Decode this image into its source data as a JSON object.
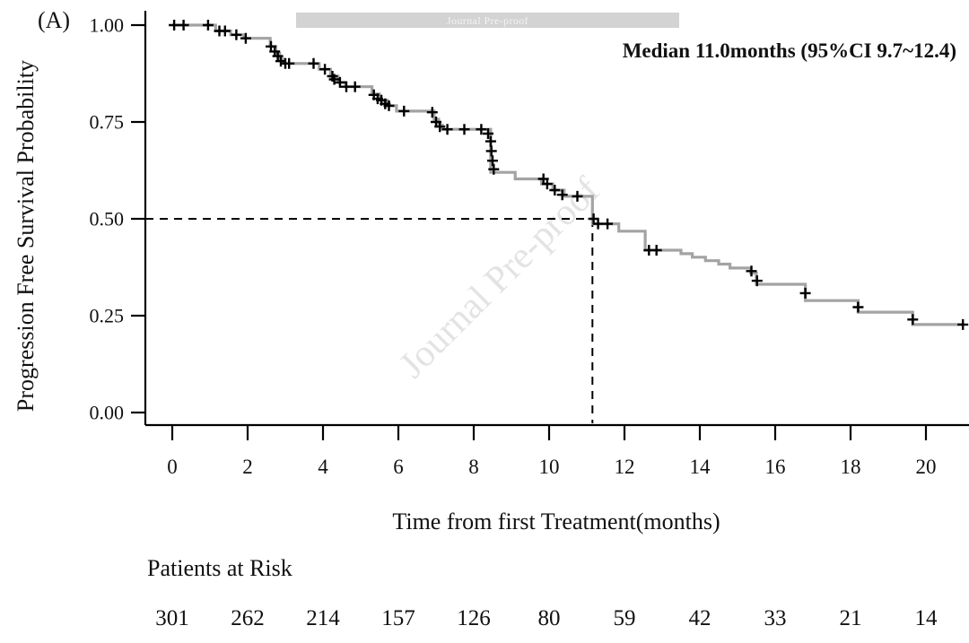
{
  "panel_label": "(A)",
  "watermark": {
    "banner_text": "Journal Pre-proof",
    "diagonal_text": "Journal Pre-proof"
  },
  "annotation": {
    "text": "Median 11.0months (95%CI 9.7~12.4)"
  },
  "axes": {
    "y_label": "Progression Free Survival Probability",
    "x_label": "Time from first Treatment(months)",
    "y_ticks": [
      "1.00",
      "0.75",
      "0.50",
      "0.25",
      "0.00"
    ],
    "x_ticks": [
      "0",
      "2",
      "4",
      "6",
      "8",
      "10",
      "12",
      "14",
      "16",
      "18",
      "20"
    ]
  },
  "risk_table": {
    "title": "Patients at Risk",
    "values": [
      "301",
      "262",
      "214",
      "157",
      "126",
      "80",
      "59",
      "42",
      "33",
      "21",
      "14"
    ]
  },
  "chart_data": {
    "type": "line",
    "subtype": "kaplan-meier-step",
    "title": "",
    "xlabel": "Time from first Treatment(months)",
    "ylabel": "Progression Free Survival Probability",
    "xlim": [
      0,
      21.2
    ],
    "ylim": [
      0,
      1.0
    ],
    "x_tick_values": [
      0,
      2,
      4,
      6,
      8,
      10,
      12,
      14,
      16,
      18,
      20
    ],
    "y_tick_values": [
      1.0,
      0.75,
      0.5,
      0.25,
      0.0
    ],
    "grid": false,
    "legend": "none",
    "curve_color": "#a3a3a3",
    "censor_color": "#000000",
    "median": {
      "time": 11.0,
      "survival": 0.5,
      "ci_low": 9.7,
      "ci_high": 12.4,
      "drawn_at_time": 11.15
    },
    "start": [
      0,
      1.0
    ],
    "end_time": 21.0,
    "steps": [
      [
        1.15,
        0.985
      ],
      [
        1.55,
        0.975
      ],
      [
        1.9,
        0.966
      ],
      [
        2.6,
        0.945
      ],
      [
        2.75,
        0.927
      ],
      [
        2.85,
        0.912
      ],
      [
        2.95,
        0.901
      ],
      [
        3.9,
        0.886
      ],
      [
        4.2,
        0.868
      ],
      [
        4.4,
        0.852
      ],
      [
        4.6,
        0.841
      ],
      [
        5.3,
        0.822
      ],
      [
        5.5,
        0.806
      ],
      [
        5.7,
        0.792
      ],
      [
        5.95,
        0.778
      ],
      [
        6.95,
        0.757
      ],
      [
        7.07,
        0.742
      ],
      [
        7.17,
        0.731
      ],
      [
        8.45,
        0.62
      ],
      [
        9.1,
        0.603
      ],
      [
        9.8,
        0.59
      ],
      [
        10.1,
        0.574
      ],
      [
        10.4,
        0.558
      ],
      [
        11.15,
        0.487
      ],
      [
        11.85,
        0.468
      ],
      [
        12.55,
        0.419
      ],
      [
        13.5,
        0.41
      ],
      [
        13.8,
        0.401
      ],
      [
        14.15,
        0.392
      ],
      [
        14.5,
        0.383
      ],
      [
        14.8,
        0.373
      ],
      [
        15.35,
        0.36
      ],
      [
        15.5,
        0.331
      ],
      [
        16.8,
        0.289
      ],
      [
        18.2,
        0.259
      ],
      [
        19.65,
        0.227
      ]
    ],
    "censors": [
      [
        0.05,
        1.0
      ],
      [
        0.3,
        1.0
      ],
      [
        0.95,
        1.0
      ],
      [
        1.25,
        0.985
      ],
      [
        1.4,
        0.985
      ],
      [
        1.7,
        0.975
      ],
      [
        1.95,
        0.966
      ],
      [
        2.62,
        0.945
      ],
      [
        2.72,
        0.932
      ],
      [
        2.8,
        0.92
      ],
      [
        2.88,
        0.907
      ],
      [
        3.0,
        0.901
      ],
      [
        3.1,
        0.901
      ],
      [
        3.75,
        0.901
      ],
      [
        4.05,
        0.886
      ],
      [
        4.25,
        0.868
      ],
      [
        4.3,
        0.86
      ],
      [
        4.45,
        0.852
      ],
      [
        4.62,
        0.841
      ],
      [
        4.85,
        0.841
      ],
      [
        5.35,
        0.82
      ],
      [
        5.45,
        0.81
      ],
      [
        5.55,
        0.806
      ],
      [
        5.65,
        0.797
      ],
      [
        5.75,
        0.792
      ],
      [
        6.15,
        0.778
      ],
      [
        6.9,
        0.775
      ],
      [
        7.0,
        0.75
      ],
      [
        7.1,
        0.738
      ],
      [
        7.3,
        0.731
      ],
      [
        7.75,
        0.731
      ],
      [
        8.2,
        0.731
      ],
      [
        8.38,
        0.72
      ],
      [
        8.45,
        0.7
      ],
      [
        8.47,
        0.675
      ],
      [
        8.5,
        0.65
      ],
      [
        8.53,
        0.628
      ],
      [
        9.85,
        0.603
      ],
      [
        9.95,
        0.59
      ],
      [
        10.15,
        0.574
      ],
      [
        10.35,
        0.562
      ],
      [
        10.75,
        0.558
      ],
      [
        11.18,
        0.5
      ],
      [
        11.3,
        0.487
      ],
      [
        11.55,
        0.487
      ],
      [
        12.65,
        0.419
      ],
      [
        12.85,
        0.419
      ],
      [
        15.37,
        0.365
      ],
      [
        15.52,
        0.34
      ],
      [
        16.8,
        0.308
      ],
      [
        18.2,
        0.272
      ],
      [
        19.65,
        0.24
      ],
      [
        20.98,
        0.227
      ]
    ],
    "at_risk": {
      "times": [
        0,
        2,
        4,
        6,
        8,
        10,
        12,
        14,
        16,
        18,
        20
      ],
      "counts": [
        301,
        262,
        214,
        157,
        126,
        80,
        59,
        42,
        33,
        21,
        14
      ]
    }
  }
}
